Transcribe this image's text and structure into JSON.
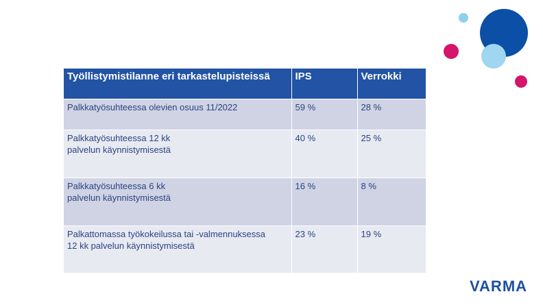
{
  "table": {
    "header": [
      "Työllistymistilanne eri tarkastelupisteissä",
      "IPS",
      "Verrokki"
    ],
    "rows": [
      [
        [
          "Palkkatyösuhteessa olevien osuus 11/2022"
        ],
        [
          "59 %"
        ],
        [
          "28 %"
        ]
      ],
      [
        [
          "Palkkatyösuhteessa 12 kk",
          "palvelun käynnistymisestä"
        ],
        [
          "40 %"
        ],
        [
          "25 %"
        ]
      ],
      [
        [
          "Palkkatyösuhteessa 6 kk",
          "palvelun käynnistymisestä"
        ],
        [
          "16 %"
        ],
        [
          "8 %"
        ]
      ],
      [
        [
          "Palkattomassa työkokeilussa tai -valmennuksessa",
          "12 kk palvelun käynnistymisestä"
        ],
        [
          "23 %"
        ],
        [
          "19 %"
        ]
      ]
    ]
  },
  "logo": "VARMA"
}
